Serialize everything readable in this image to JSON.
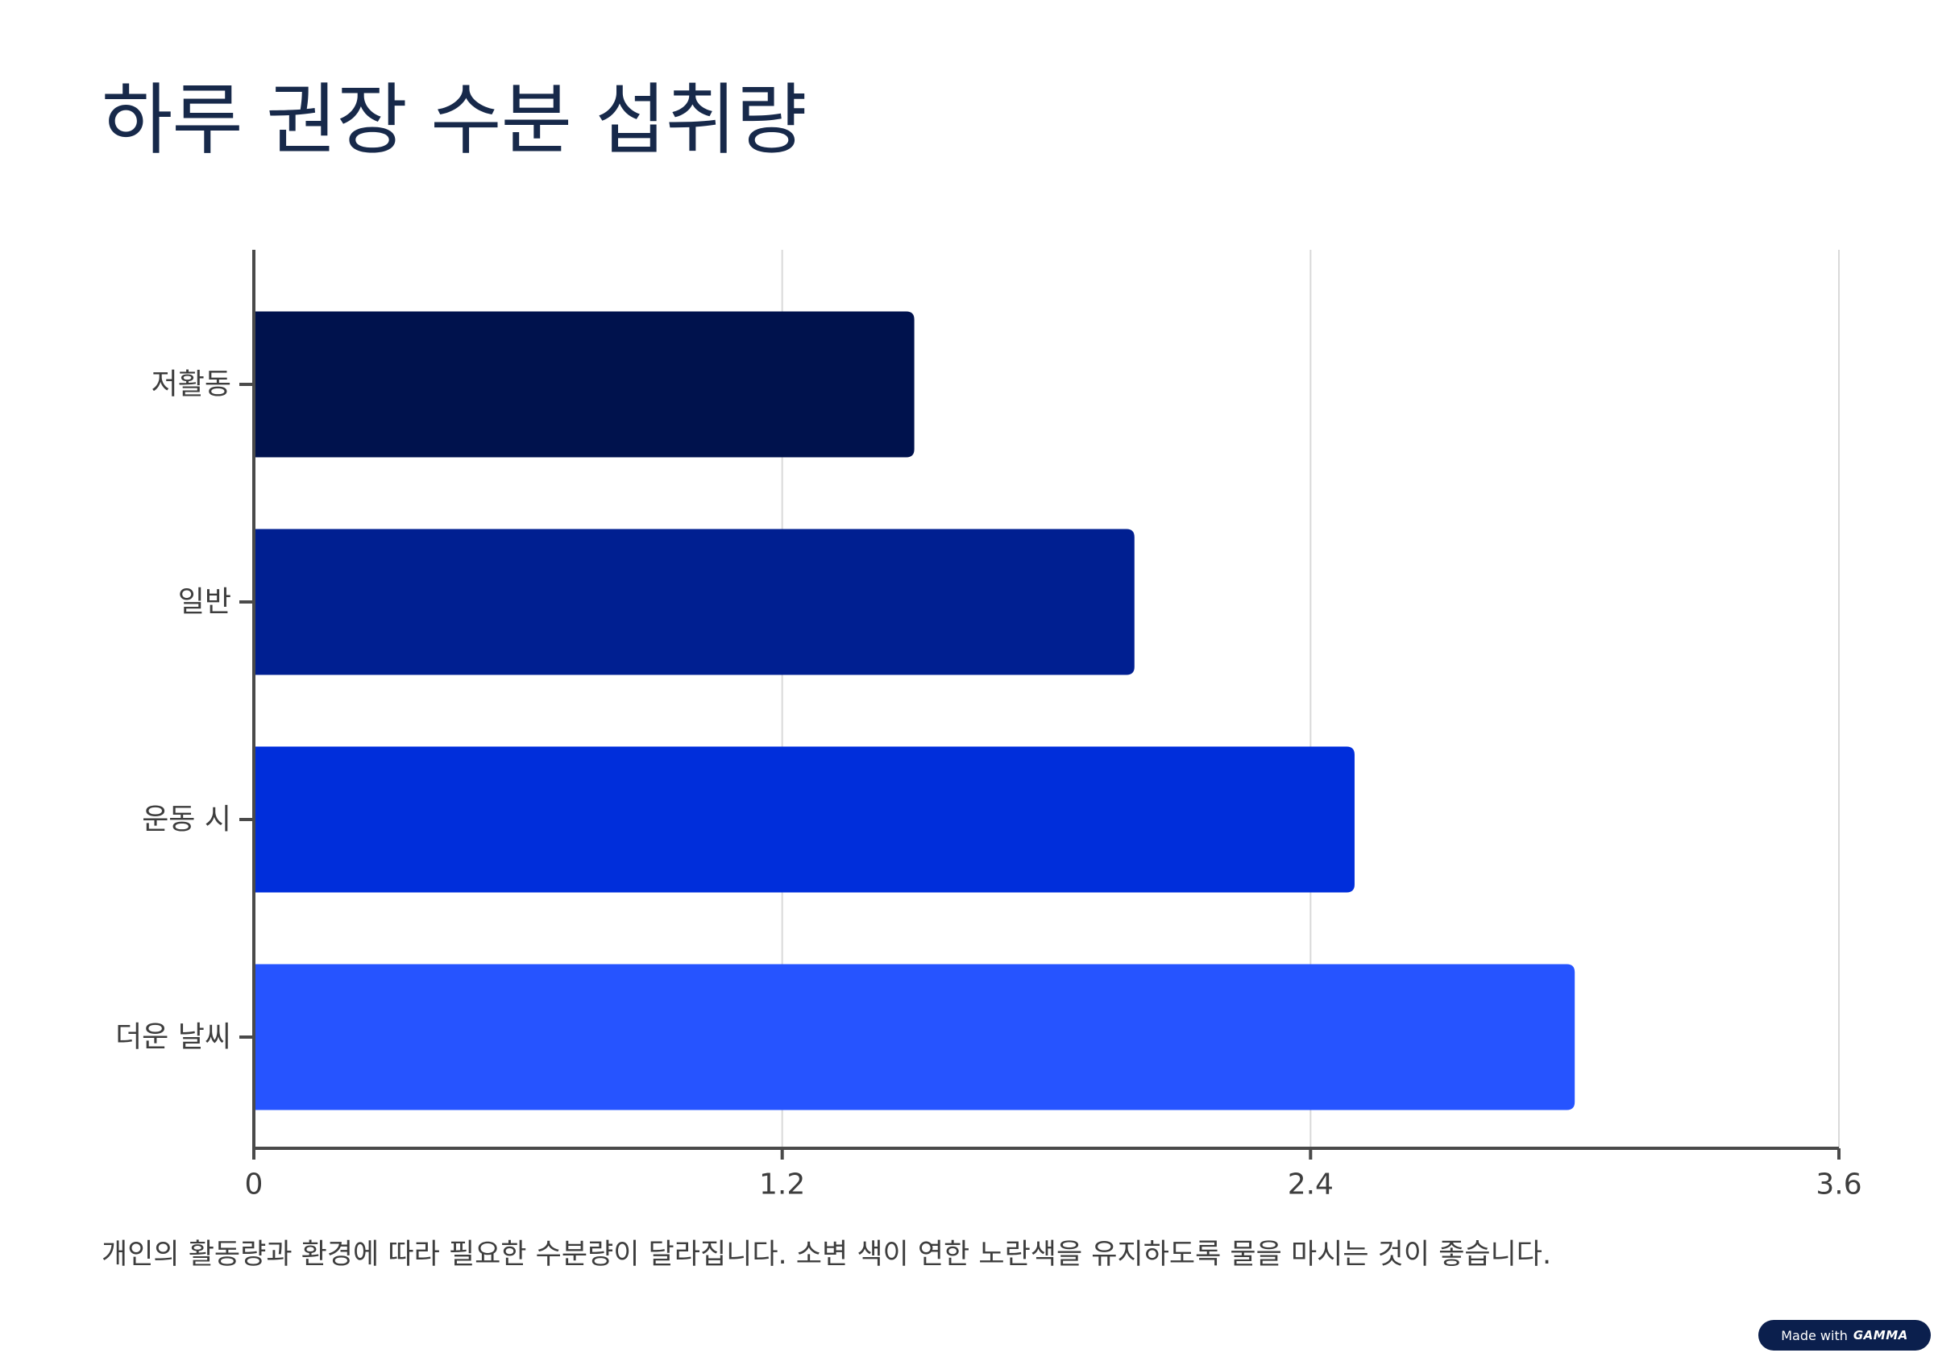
{
  "title": "하루 권장 수분 섭취량",
  "caption": "개인의 활동량과 환경에 따라 필요한 수분량이 달라집니다. 소변 색이 연한 노란색을 유지하도록 물을 마시는 것이 좋습니다.",
  "badge": {
    "label": "Made with",
    "brand": "GAMMA"
  },
  "colors": {
    "title": "#17294a",
    "axis": "#4a4a4a",
    "grid": "#d9d9d9",
    "text": "#3d3d3d"
  },
  "chart_data": {
    "type": "bar",
    "orientation": "horizontal",
    "categories": [
      "저활동",
      "일반",
      "운동 시",
      "더운 날씨"
    ],
    "values": [
      1.5,
      2.0,
      2.5,
      3.0
    ],
    "colors": [
      "#00124d",
      "#001f91",
      "#002edb",
      "#2654ff"
    ],
    "xlim": [
      0,
      3.6
    ],
    "ticks": [
      0,
      1.2,
      2.4,
      3.6
    ],
    "tick_labels": [
      "0",
      "1.2",
      "2.4",
      "3.6"
    ],
    "title": "",
    "xlabel": "",
    "ylabel": "",
    "grid": true,
    "legend": "none"
  }
}
